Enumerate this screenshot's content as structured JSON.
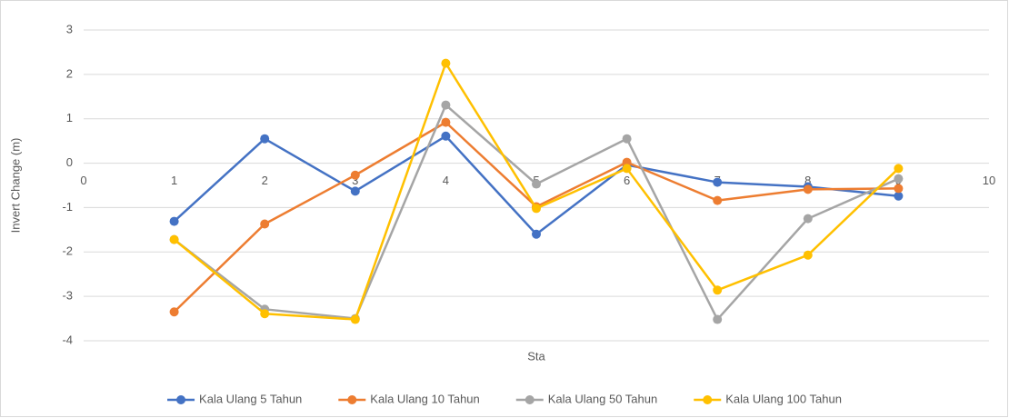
{
  "chart_data": {
    "type": "line",
    "x_label": "Sta",
    "y_label": "Invert Change (m)",
    "x": [
      1,
      2,
      3,
      4,
      5,
      6,
      7,
      8,
      9
    ],
    "series": [
      {
        "name": "Kala Ulang 5 Tahun",
        "color": "#4472c4",
        "values": [
          -1.31,
          0.55,
          -0.63,
          0.61,
          -1.6,
          -0.04,
          -0.43,
          -0.53,
          -0.74
        ]
      },
      {
        "name": "Kala Ulang 10 Tahun",
        "color": "#ed7d31",
        "values": [
          -3.35,
          -1.37,
          -0.27,
          0.92,
          -0.98,
          0.02,
          -0.84,
          -0.59,
          -0.57
        ]
      },
      {
        "name": "Kala Ulang 50 Tahun",
        "color": "#a5a5a5",
        "values": [
          -1.72,
          -3.29,
          -3.5,
          1.31,
          -0.47,
          0.55,
          -3.52,
          -1.25,
          -0.35
        ]
      },
      {
        "name": "Kala Ulang 100 Tahun",
        "color": "#ffc000",
        "values": [
          -1.72,
          -3.39,
          -3.52,
          2.25,
          -1.02,
          -0.12,
          -2.86,
          -2.07,
          -0.12
        ]
      }
    ],
    "xlim": [
      0,
      10
    ],
    "xticks": [
      0,
      1,
      2,
      3,
      4,
      5,
      6,
      7,
      8,
      9,
      10
    ],
    "ylim": [
      -4,
      3
    ],
    "yticks": [
      -4,
      -3,
      -2,
      -1,
      0,
      1,
      2,
      3
    ],
    "grid": true,
    "legend": "bottom"
  }
}
